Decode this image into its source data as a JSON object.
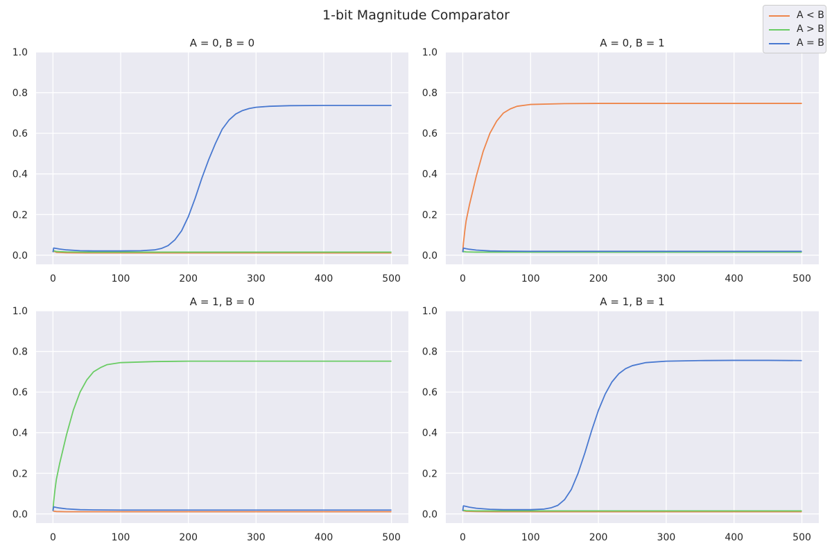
{
  "figure": {
    "title": "1-bit Magnitude Comparator"
  },
  "legend": [
    {
      "label": "A < B",
      "color": "#ee854a"
    },
    {
      "label": "A > B",
      "color": "#6acc64"
    },
    {
      "label": "A = B",
      "color": "#4878d0"
    }
  ],
  "style": {
    "plot_background": "#eaeaf2",
    "grid_color": "#ffffff",
    "grid": true,
    "legend_placement": "top-right"
  },
  "chart_data": [
    {
      "type": "line",
      "title": "A = 0, B = 0",
      "xlabel": "",
      "ylabel": "",
      "xlim": [
        0,
        500
      ],
      "ylim": [
        0.0,
        1.0
      ],
      "xticks": [
        0,
        100,
        200,
        300,
        400,
        500
      ],
      "yticks": [
        0.0,
        0.2,
        0.4,
        0.6,
        0.8,
        1.0
      ],
      "series": [
        {
          "name": "A < B",
          "x": [
            0,
            1,
            5,
            20,
            50,
            100,
            200,
            300,
            400,
            500
          ],
          "values": [
            0.015,
            0.02,
            0.014,
            0.012,
            0.011,
            0.011,
            0.011,
            0.011,
            0.011,
            0.011
          ]
        },
        {
          "name": "A > B",
          "x": [
            0,
            1,
            5,
            20,
            50,
            100,
            200,
            300,
            400,
            500
          ],
          "values": [
            0.015,
            0.022,
            0.018,
            0.016,
            0.015,
            0.015,
            0.015,
            0.015,
            0.015,
            0.015
          ]
        },
        {
          "name": "A = B",
          "x": [
            0,
            1,
            5,
            10,
            20,
            40,
            60,
            100,
            130,
            150,
            160,
            170,
            180,
            190,
            200,
            210,
            220,
            230,
            240,
            250,
            260,
            270,
            280,
            290,
            300,
            320,
            350,
            400,
            450,
            500
          ],
          "values": [
            0.015,
            0.035,
            0.033,
            0.03,
            0.026,
            0.022,
            0.021,
            0.021,
            0.022,
            0.026,
            0.033,
            0.047,
            0.075,
            0.12,
            0.19,
            0.28,
            0.38,
            0.47,
            0.55,
            0.62,
            0.665,
            0.695,
            0.712,
            0.722,
            0.728,
            0.733,
            0.736,
            0.737,
            0.737,
            0.737
          ]
        }
      ]
    },
    {
      "type": "line",
      "title": "A = 0, B = 1",
      "xlabel": "",
      "ylabel": "",
      "xlim": [
        0,
        500
      ],
      "ylim": [
        0.0,
        1.0
      ],
      "xticks": [
        0,
        100,
        200,
        300,
        400,
        500
      ],
      "yticks": [
        0.0,
        0.2,
        0.4,
        0.6,
        0.8,
        1.0
      ],
      "series": [
        {
          "name": "A < B",
          "x": [
            0,
            1,
            3,
            5,
            10,
            20,
            30,
            40,
            50,
            60,
            70,
            80,
            100,
            150,
            200,
            300,
            400,
            500
          ],
          "values": [
            0.015,
            0.06,
            0.12,
            0.17,
            0.25,
            0.39,
            0.51,
            0.6,
            0.66,
            0.7,
            0.72,
            0.733,
            0.742,
            0.746,
            0.747,
            0.747,
            0.747,
            0.747
          ]
        },
        {
          "name": "A > B",
          "x": [
            0,
            1,
            5,
            20,
            50,
            100,
            200,
            300,
            400,
            500
          ],
          "values": [
            0.015,
            0.018,
            0.016,
            0.015,
            0.015,
            0.015,
            0.015,
            0.015,
            0.015,
            0.015
          ]
        },
        {
          "name": "A = B",
          "x": [
            0,
            1,
            5,
            10,
            20,
            40,
            60,
            100,
            200,
            300,
            400,
            500
          ],
          "values": [
            0.015,
            0.035,
            0.032,
            0.029,
            0.025,
            0.021,
            0.02,
            0.019,
            0.019,
            0.019,
            0.019,
            0.019
          ]
        }
      ]
    },
    {
      "type": "line",
      "title": "A = 1, B = 0",
      "xlabel": "",
      "ylabel": "",
      "xlim": [
        0,
        500
      ],
      "ylim": [
        0.0,
        1.0
      ],
      "xticks": [
        0,
        100,
        200,
        300,
        400,
        500
      ],
      "yticks": [
        0.0,
        0.2,
        0.4,
        0.6,
        0.8,
        1.0
      ],
      "series": [
        {
          "name": "A < B",
          "x": [
            0,
            1,
            5,
            20,
            50,
            100,
            200,
            300,
            400,
            500
          ],
          "values": [
            0.015,
            0.014,
            0.012,
            0.011,
            0.011,
            0.011,
            0.011,
            0.011,
            0.011,
            0.011
          ]
        },
        {
          "name": "A > B",
          "x": [
            0,
            1,
            3,
            5,
            10,
            20,
            30,
            40,
            50,
            60,
            70,
            80,
            100,
            150,
            200,
            300,
            400,
            500
          ],
          "values": [
            0.015,
            0.06,
            0.12,
            0.17,
            0.25,
            0.39,
            0.51,
            0.6,
            0.66,
            0.7,
            0.72,
            0.735,
            0.745,
            0.75,
            0.752,
            0.752,
            0.752,
            0.752
          ]
        },
        {
          "name": "A = B",
          "x": [
            0,
            1,
            5,
            10,
            20,
            40,
            60,
            100,
            200,
            300,
            400,
            500
          ],
          "values": [
            0.015,
            0.035,
            0.032,
            0.029,
            0.025,
            0.021,
            0.02,
            0.019,
            0.019,
            0.019,
            0.019,
            0.019
          ]
        }
      ]
    },
    {
      "type": "line",
      "title": "A = 1, B = 1",
      "xlabel": "",
      "ylabel": "",
      "xlim": [
        0,
        500
      ],
      "ylim": [
        0.0,
        1.0
      ],
      "xticks": [
        0,
        100,
        200,
        300,
        400,
        500
      ],
      "yticks": [
        0.0,
        0.2,
        0.4,
        0.6,
        0.8,
        1.0
      ],
      "series": [
        {
          "name": "A < B",
          "x": [
            0,
            1,
            5,
            20,
            50,
            100,
            200,
            300,
            400,
            500
          ],
          "values": [
            0.015,
            0.016,
            0.013,
            0.012,
            0.011,
            0.011,
            0.011,
            0.011,
            0.011,
            0.011
          ]
        },
        {
          "name": "A > B",
          "x": [
            0,
            1,
            5,
            20,
            50,
            100,
            200,
            300,
            400,
            500
          ],
          "values": [
            0.015,
            0.018,
            0.016,
            0.015,
            0.015,
            0.015,
            0.015,
            0.015,
            0.015,
            0.015
          ]
        },
        {
          "name": "A = B",
          "x": [
            0,
            1,
            5,
            10,
            20,
            40,
            60,
            100,
            120,
            130,
            140,
            150,
            160,
            170,
            180,
            190,
            200,
            210,
            220,
            230,
            240,
            250,
            270,
            300,
            350,
            400,
            450,
            500
          ],
          "values": [
            0.015,
            0.04,
            0.037,
            0.033,
            0.028,
            0.023,
            0.021,
            0.021,
            0.024,
            0.03,
            0.042,
            0.07,
            0.12,
            0.2,
            0.3,
            0.41,
            0.51,
            0.59,
            0.65,
            0.69,
            0.715,
            0.73,
            0.745,
            0.752,
            0.755,
            0.756,
            0.756,
            0.755
          ]
        }
      ]
    }
  ]
}
